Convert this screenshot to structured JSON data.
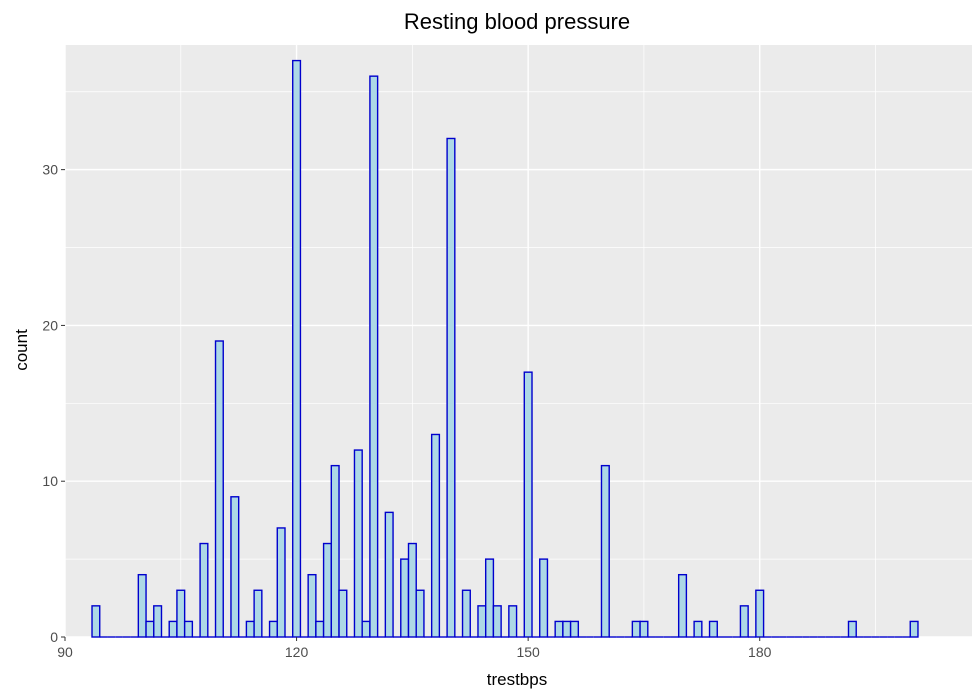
{
  "chart_data": {
    "type": "bar",
    "title": "Resting blood pressure",
    "xlabel": "trestbps",
    "ylabel": "count",
    "xlim": [
      90,
      207.5
    ],
    "ylim": [
      0,
      38
    ],
    "x_ticks": [
      90,
      120,
      150,
      180
    ],
    "y_ticks": [
      0,
      10,
      20,
      30
    ],
    "grid": true,
    "bin_width": 1,
    "colors": {
      "fill": "#add8e6",
      "outline": "#0000cd",
      "panel": "#ebebeb",
      "grid": "#ffffff"
    },
    "x": [
      94,
      95,
      96,
      97,
      98,
      99,
      100,
      101,
      102,
      103,
      104,
      105,
      106,
      107,
      108,
      109,
      110,
      111,
      112,
      113,
      114,
      115,
      116,
      117,
      118,
      119,
      120,
      121,
      122,
      123,
      124,
      125,
      126,
      127,
      128,
      129,
      130,
      131,
      132,
      133,
      134,
      135,
      136,
      137,
      138,
      139,
      140,
      141,
      142,
      143,
      144,
      145,
      146,
      147,
      148,
      149,
      150,
      151,
      152,
      153,
      154,
      155,
      156,
      157,
      158,
      159,
      160,
      161,
      162,
      163,
      164,
      165,
      166,
      167,
      168,
      169,
      170,
      171,
      172,
      173,
      174,
      175,
      176,
      177,
      178,
      179,
      180,
      181,
      182,
      183,
      184,
      185,
      186,
      187,
      188,
      189,
      190,
      191,
      192,
      193,
      194,
      195,
      196,
      197,
      198,
      199,
      200
    ],
    "values": [
      2,
      0,
      0,
      0,
      0,
      0,
      4,
      1,
      2,
      0,
      1,
      3,
      1,
      0,
      6,
      0,
      19,
      0,
      9,
      0,
      1,
      3,
      0,
      1,
      7,
      0,
      37,
      0,
      4,
      1,
      6,
      11,
      3,
      0,
      12,
      1,
      36,
      0,
      8,
      0,
      5,
      6,
      3,
      0,
      13,
      0,
      32,
      0,
      3,
      0,
      2,
      5,
      2,
      0,
      2,
      0,
      17,
      0,
      5,
      0,
      1,
      1,
      1,
      0,
      0,
      0,
      11,
      0,
      0,
      0,
      1,
      1,
      0,
      0,
      0,
      0,
      4,
      0,
      1,
      0,
      1,
      0,
      0,
      0,
      2,
      0,
      3,
      0,
      0,
      0,
      0,
      0,
      0,
      0,
      0,
      0,
      0,
      0,
      1,
      0,
      0,
      0,
      0,
      0,
      0,
      0,
      1
    ]
  }
}
